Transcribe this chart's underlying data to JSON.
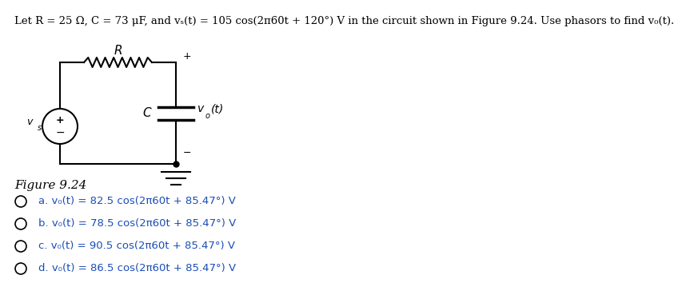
{
  "title_line": "Let R = 25 Ω, C = 73 μF, and vₛ(t) = 105 cos(2π60t + 120°) V in the circuit shown in Figure 9.24. Use phasors to find v₀(t).",
  "figure_label": "Figure 9.24",
  "choices": [
    "a. v₀(t) = 82.5 cos(2π60t + 85.47°) V",
    "b. v₀(t) = 78.5 cos(2π60t + 85.47°) V",
    "c. v₀(t) = 90.5 cos(2π60t + 85.47°) V",
    "d. v₀(t) = 86.5 cos(2π60t + 85.47°) V"
  ],
  "text_color": "#1a4db5",
  "bg_color": "#ffffff",
  "circuit_color": "#000000",
  "title_fontsize": 9.5,
  "body_fontsize": 9.5,
  "fig_label_fontsize": 11,
  "choice_fontsize": 9.5
}
